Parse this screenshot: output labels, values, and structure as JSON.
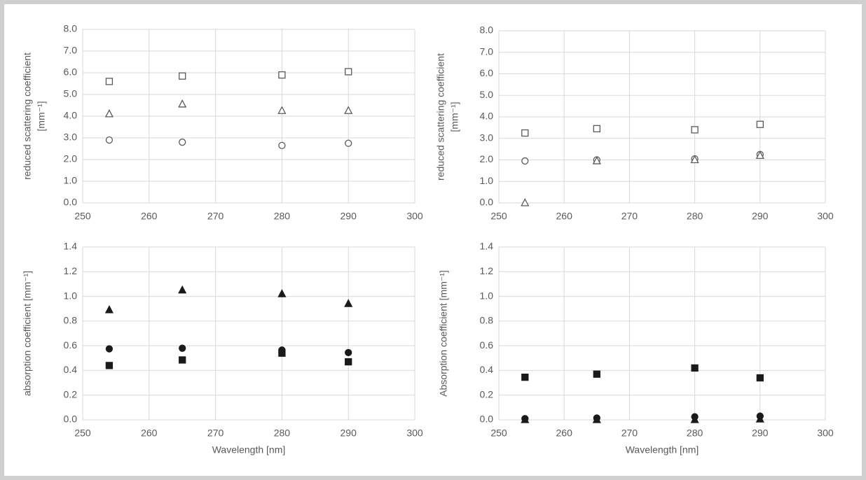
{
  "chart_data": [
    {
      "type": "scatter",
      "ylabel": [
        "reduced scattering coefficient",
        "[mm⁻¹]"
      ],
      "x": [
        254,
        265,
        280,
        290
      ],
      "series": [
        {
          "marker": "square",
          "filled": false,
          "color": "#595959",
          "values": [
            5.6,
            5.85,
            5.9,
            6.05
          ]
        },
        {
          "marker": "triangle",
          "filled": false,
          "color": "#595959",
          "values": [
            4.1,
            4.55,
            4.25,
            4.25
          ]
        },
        {
          "marker": "circle",
          "filled": false,
          "color": "#595959",
          "values": [
            2.9,
            2.8,
            2.65,
            2.75
          ]
        }
      ],
      "xlim": [
        250,
        300
      ],
      "xticks": [
        250,
        260,
        270,
        280,
        290,
        300
      ],
      "ylim": [
        0,
        8
      ],
      "yticks": [
        {
          "value": 0,
          "label": "0.0"
        },
        {
          "value": 1,
          "label": "1.0"
        },
        {
          "value": 2,
          "label": "2.0"
        },
        {
          "value": 3,
          "label": "3.0"
        },
        {
          "value": 4,
          "label": "4.0"
        },
        {
          "value": 5,
          "label": "5.0"
        },
        {
          "value": 6,
          "label": "6.0"
        },
        {
          "value": 7,
          "label": "7.0"
        },
        {
          "value": 8,
          "label": "8.0"
        }
      ],
      "grid": true
    },
    {
      "type": "scatter",
      "ylabel": [
        "reduced scattering coefficient",
        "[mm⁻¹]"
      ],
      "x": [
        254,
        265,
        280,
        290
      ],
      "series": [
        {
          "marker": "square",
          "filled": false,
          "color": "#595959",
          "values": [
            3.25,
            3.45,
            3.4,
            3.65
          ]
        },
        {
          "marker": "circle",
          "filled": false,
          "color": "#595959",
          "values": [
            1.95,
            2.0,
            2.05,
            2.25
          ]
        },
        {
          "marker": "triangle",
          "filled": false,
          "color": "#595959",
          "values": [
            0.0,
            1.95,
            2.0,
            2.2
          ]
        }
      ],
      "xlim": [
        250,
        300
      ],
      "xticks": [
        250,
        260,
        270,
        280,
        290,
        300
      ],
      "ylim": [
        0,
        8
      ],
      "yticks": [
        {
          "value": 0,
          "label": "0.0"
        },
        {
          "value": 1,
          "label": "1.0"
        },
        {
          "value": 2,
          "label": "2.0"
        },
        {
          "value": 3,
          "label": "3.0"
        },
        {
          "value": 4,
          "label": "4.0"
        },
        {
          "value": 5,
          "label": "5.0"
        },
        {
          "value": 6,
          "label": "6.0"
        },
        {
          "value": 7,
          "label": "7.0"
        },
        {
          "value": 8,
          "label": "8.0"
        }
      ],
      "grid": true
    },
    {
      "type": "scatter",
      "ylabel": [
        "absorption coefficient [mm⁻¹]"
      ],
      "xlabel": "Wavelength [nm]",
      "x": [
        254,
        265,
        280,
        290
      ],
      "series": [
        {
          "marker": "triangle",
          "filled": true,
          "color": "#1a1a1a",
          "values": [
            0.89,
            1.05,
            1.02,
            0.94
          ]
        },
        {
          "marker": "circle",
          "filled": true,
          "color": "#1a1a1a",
          "values": [
            0.575,
            0.58,
            0.565,
            0.545
          ]
        },
        {
          "marker": "square",
          "filled": true,
          "color": "#1a1a1a",
          "values": [
            0.44,
            0.485,
            0.54,
            0.47
          ]
        }
      ],
      "xlim": [
        250,
        300
      ],
      "xticks": [
        250,
        260,
        270,
        280,
        290,
        300
      ],
      "ylim": [
        0,
        1.4
      ],
      "yticks": [
        {
          "value": 0,
          "label": "0.0"
        },
        {
          "value": 0.2,
          "label": "0.2"
        },
        {
          "value": 0.4,
          "label": "0.4"
        },
        {
          "value": 0.6,
          "label": "0.6"
        },
        {
          "value": 0.8,
          "label": "0.8"
        },
        {
          "value": 1,
          "label": "1.0"
        },
        {
          "value": 1.2,
          "label": "1.2"
        },
        {
          "value": 1.4,
          "label": "1.4"
        }
      ],
      "grid": true
    },
    {
      "type": "scatter",
      "ylabel": [
        "Absorption  coefficient [mm⁻¹]"
      ],
      "xlabel": "Wavelength [nm]",
      "x": [
        254,
        265,
        280,
        290
      ],
      "series": [
        {
          "marker": "square",
          "filled": true,
          "color": "#1a1a1a",
          "values": [
            0.345,
            0.37,
            0.42,
            0.34
          ]
        },
        {
          "marker": "circle",
          "filled": true,
          "color": "#1a1a1a",
          "values": [
            0.01,
            0.015,
            0.025,
            0.03
          ]
        },
        {
          "marker": "triangle",
          "filled": true,
          "color": "#1a1a1a",
          "values": [
            0.0,
            0.0,
            0.0,
            0.005
          ]
        }
      ],
      "xlim": [
        250,
        300
      ],
      "xticks": [
        250,
        260,
        270,
        280,
        290,
        300
      ],
      "ylim": [
        0,
        1.4
      ],
      "yticks": [
        {
          "value": 0,
          "label": "0.0"
        },
        {
          "value": 0.2,
          "label": "0.2"
        },
        {
          "value": 0.4,
          "label": "0.4"
        },
        {
          "value": 0.6,
          "label": "0.6"
        },
        {
          "value": 0.8,
          "label": "0.8"
        },
        {
          "value": 1,
          "label": "1.0"
        },
        {
          "value": 1.2,
          "label": "1.2"
        },
        {
          "value": 1.4,
          "label": "1.4"
        }
      ],
      "grid": true
    }
  ]
}
